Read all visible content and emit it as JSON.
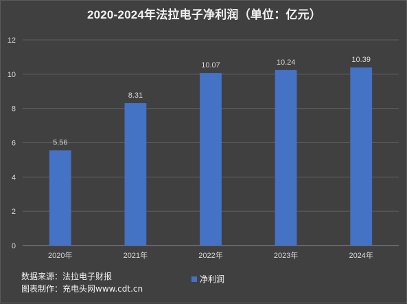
{
  "chart_data": {
    "type": "bar",
    "title": "2020-2024年法拉电子净利润（单位：亿元）",
    "xlabel": "",
    "ylabel": "",
    "categories": [
      "2020年",
      "2021年",
      "2022年",
      "2023年",
      "2024年"
    ],
    "series": [
      {
        "name": "净利润",
        "values": [
          5.56,
          8.31,
          10.07,
          10.24,
          10.39
        ],
        "color": "#4472c4"
      }
    ],
    "data_labels": [
      "5.56",
      "8.31",
      "10.07",
      "10.24",
      "10.39"
    ],
    "ylim": [
      0,
      12
    ],
    "yticks": [
      0,
      2,
      4,
      6,
      8,
      10,
      12
    ],
    "grid": true,
    "legend_position": "bottom"
  },
  "footnotes": {
    "source": "数据来源：法拉电子财报",
    "made_by": "图表制作：充电头网www.cdt.cn"
  },
  "colors": {
    "background": "#404040",
    "bar": "#4472c4",
    "gridline": "#5f5f5f",
    "text": "#f2f2f2",
    "label": "#d9d9d9"
  }
}
